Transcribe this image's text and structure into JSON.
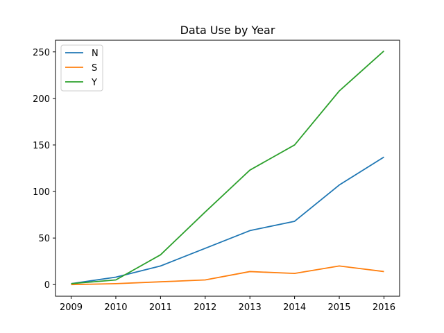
{
  "chart_data": {
    "type": "line",
    "title": "Data Use by Year",
    "xlabel": "",
    "ylabel": "",
    "x": [
      2009,
      2010,
      2011,
      2012,
      2013,
      2014,
      2015,
      2016
    ],
    "xticks": [
      "2009",
      "2010",
      "2011",
      "2012",
      "2013",
      "2014",
      "2015",
      "2016"
    ],
    "yticks": [
      0,
      50,
      100,
      150,
      200,
      250
    ],
    "xlim": [
      2008.65,
      2016.35
    ],
    "ylim": [
      -12.5,
      262.5
    ],
    "grid": false,
    "legend_position": "top-left",
    "series": [
      {
        "name": "N",
        "color": "#1f77b4",
        "values": [
          1,
          8,
          20,
          39,
          58,
          68,
          107,
          137
        ]
      },
      {
        "name": "S",
        "color": "#ff7f0e",
        "values": [
          0,
          1,
          3,
          5,
          14,
          12,
          20,
          14
        ]
      },
      {
        "name": "Y",
        "color": "#2ca02c",
        "values": [
          1,
          5,
          32,
          78,
          123,
          150,
          208,
          251
        ]
      }
    ]
  }
}
